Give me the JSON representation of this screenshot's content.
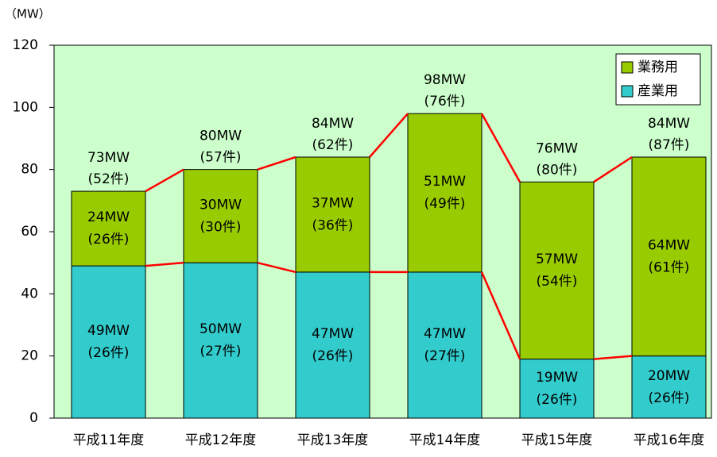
{
  "chart_data": {
    "type": "stacked-bar",
    "y_axis_label": "（MW）",
    "categories": [
      "平成11年度",
      "平成12年度",
      "平成13年度",
      "平成14年度",
      "平成15年度",
      "平成16年度"
    ],
    "series": [
      {
        "name": "産業用",
        "color": "#33cccc",
        "values": [
          49,
          50,
          47,
          47,
          19,
          20
        ],
        "value_labels": [
          "49MW",
          "50MW",
          "47MW",
          "47MW",
          "19MW",
          "20MW"
        ],
        "count_labels": [
          "(26件)",
          "(27件)",
          "(26件)",
          "(27件)",
          "(26件)",
          "(26件)"
        ]
      },
      {
        "name": "業務用",
        "color": "#99cc00",
        "values": [
          24,
          30,
          37,
          51,
          57,
          64
        ],
        "value_labels": [
          "24MW",
          "30MW",
          "37MW",
          "51MW",
          "57MW",
          "64MW"
        ],
        "count_labels": [
          "(26件)",
          "(30件)",
          "(36件)",
          "(49件)",
          "(54件)",
          "(61件)"
        ]
      }
    ],
    "totals": [
      73,
      80,
      84,
      98,
      76,
      84
    ],
    "total_labels": [
      "73MW",
      "80MW",
      "84MW",
      "98MW",
      "76MW",
      "84MW"
    ],
    "total_count_labels": [
      "(52件)",
      "(57件)",
      "(62件)",
      "(76件)",
      "(80件)",
      "(87件)"
    ],
    "connector_color": "#ff0000",
    "plot_background": "#ccffcc",
    "ylim": [
      0,
      120
    ],
    "yticks": [
      0,
      20,
      40,
      60,
      80,
      100,
      120
    ],
    "legend": "top-right"
  }
}
